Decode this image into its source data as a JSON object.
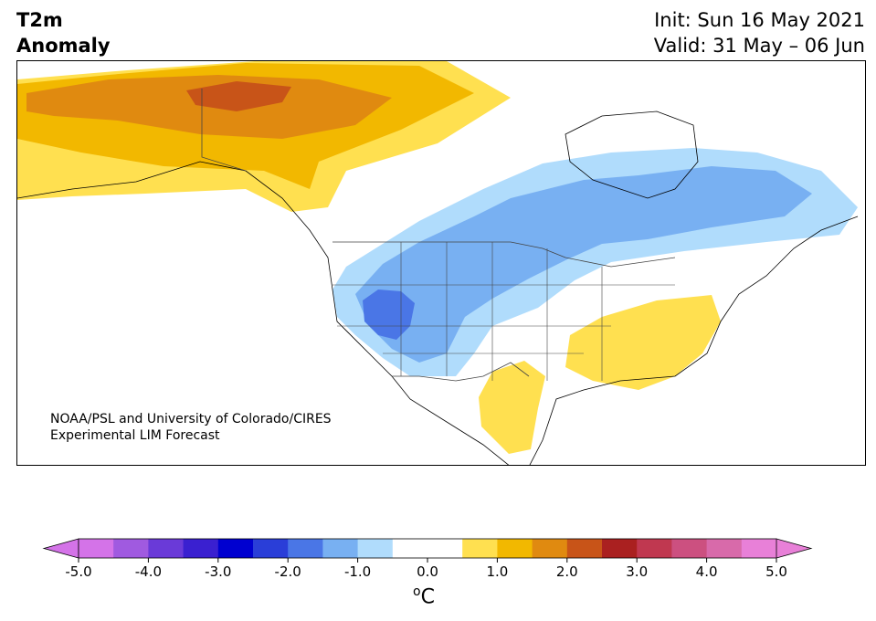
{
  "header": {
    "title_line1": "T2m",
    "title_line2": "Anomaly",
    "init": "Init: Sun 16 May 2021",
    "valid": "Valid: 31 May – 06 Jun"
  },
  "credit": {
    "line1": "NOAA/PSL and University of Colorado/CIRES",
    "line2": "Experimental LIM Forecast"
  },
  "colorbar": {
    "unit_prefix": "o",
    "unit_main": "C",
    "ticks": [
      "-5.0",
      "-4.0",
      "-3.0",
      "-2.0",
      "-1.0",
      "0.0",
      "1.0",
      "2.0",
      "3.0",
      "4.0",
      "5.0"
    ],
    "colors": [
      "#d473e8",
      "#a05ae0",
      "#6a3ad8",
      "#3a20d0",
      "#0000d0",
      "#2a3ed8",
      "#4a76e6",
      "#78b0f2",
      "#b0dcfc",
      "#ffffff",
      "#ffffff",
      "#ffe050",
      "#f2b800",
      "#e08a10",
      "#c85418",
      "#aa2020",
      "#c03850",
      "#cc5080",
      "#d86aaa",
      "#e880d8"
    ],
    "extend_low_color": "#d473e8",
    "extend_high_color": "#e880d8"
  },
  "map": {
    "region": "North America",
    "colors": {
      "ocean": "#ffffff",
      "coastline": "#000000",
      "state_border": "#444444",
      "warm_1": "#ffe050",
      "warm_2": "#f2b800",
      "warm_3": "#e08a10",
      "warm_4": "#c85418",
      "cool_1": "#b0dcfc",
      "cool_2": "#78b0f2",
      "cool_3": "#4a76e6"
    }
  }
}
